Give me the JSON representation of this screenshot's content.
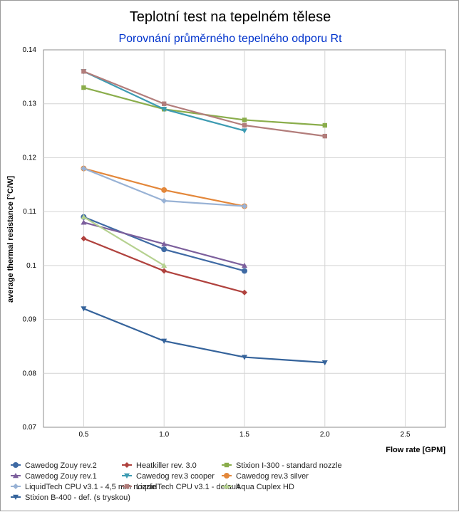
{
  "chart_data": {
    "type": "line",
    "title": "Teplotní test na tepelném tělese",
    "subtitle": "Porovnání průměrného tepelného odporu Rt",
    "xlabel": "Flow rate [GPM]",
    "ylabel": "average thermal resistance [°C/W]",
    "xlim": [
      0.25,
      2.75
    ],
    "ylim": [
      0.07,
      0.14
    ],
    "x_ticks": [
      0.5,
      1.0,
      1.5,
      2.0,
      2.5
    ],
    "x_tick_labels": [
      "0.5",
      "1.0",
      "1.5",
      "2.0",
      "2.5"
    ],
    "y_ticks": [
      0.07,
      0.08,
      0.09,
      0.1,
      0.11,
      0.12,
      0.13,
      0.14
    ],
    "y_tick_labels": [
      "0.07",
      "0.08",
      "0.09",
      "0.1",
      "0.11",
      "0.12",
      "0.13",
      "0.14"
    ],
    "grid": true,
    "legend_position": "bottom",
    "series": [
      {
        "name": "Cawedog Zouy rev.2",
        "color": "#3f6aa4",
        "marker": "circle",
        "x": [
          0.5,
          1.0,
          1.5
        ],
        "values": [
          0.109,
          0.103,
          0.099
        ]
      },
      {
        "name": "Heatkiller rev. 3.0",
        "color": "#b0423e",
        "marker": "diamond",
        "x": [
          0.5,
          1.0,
          1.5
        ],
        "values": [
          0.105,
          0.099,
          0.095
        ]
      },
      {
        "name": "Stixion I-300 - standard nozzle",
        "color": "#8aad4b",
        "marker": "square",
        "x": [
          0.5,
          1.0,
          1.5,
          2.0
        ],
        "values": [
          0.133,
          0.129,
          0.127,
          0.126
        ]
      },
      {
        "name": "Cawedog Zouy rev.1",
        "color": "#7c5f9c",
        "marker": "triangle-up",
        "x": [
          0.5,
          1.0,
          1.5
        ],
        "values": [
          0.108,
          0.104,
          0.1
        ]
      },
      {
        "name": "Cawedog rev.3 cooper",
        "color": "#3d9bb2",
        "marker": "triangle-down",
        "x": [
          0.5,
          1.0,
          1.5
        ],
        "values": [
          0.136,
          0.129,
          0.125
        ]
      },
      {
        "name": "Cawedog rev.3 silver",
        "color": "#e3873a",
        "marker": "circle",
        "x": [
          0.5,
          1.0,
          1.5
        ],
        "values": [
          0.118,
          0.114,
          0.111
        ]
      },
      {
        "name": "LiquidTech CPU v3.1 - 4,5 mm nozzle",
        "color": "#98b2d5",
        "marker": "diamond",
        "x": [
          0.5,
          1.0,
          1.5
        ],
        "values": [
          0.118,
          0.112,
          0.111
        ]
      },
      {
        "name": "LiquidTech CPU v3.1 - default",
        "color": "#b27d7b",
        "marker": "square",
        "x": [
          0.5,
          1.0,
          1.5,
          2.0
        ],
        "values": [
          0.136,
          0.13,
          0.126,
          0.124
        ]
      },
      {
        "name": "Aqua Cuplex HD",
        "color": "#b5d18f",
        "marker": "triangle-up",
        "x": [
          0.5,
          1.0
        ],
        "values": [
          0.109,
          0.1
        ]
      },
      {
        "name": "Stixion B-400 - def. (s tryskou)",
        "color": "#35639b",
        "marker": "triangle-down",
        "x": [
          0.5,
          1.0,
          1.5,
          2.0
        ],
        "values": [
          0.092,
          0.086,
          0.083,
          0.082
        ]
      }
    ]
  }
}
